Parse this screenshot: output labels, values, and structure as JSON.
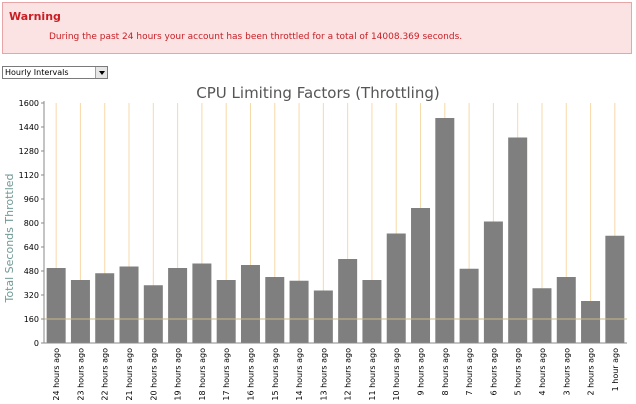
{
  "warning": {
    "title": "Warning",
    "message": "During the past 24 hours your account has been throttled for a total of 14008.369 seconds."
  },
  "interval_select": {
    "selected": "Hourly Intervals",
    "arrow_icon": "chevron-down-icon"
  },
  "chart_data": {
    "type": "bar",
    "title": "CPU Limiting Factors (Throttling)",
    "xlabel": "",
    "ylabel": "Total Seconds Throttled",
    "ylim": [
      0,
      1600
    ],
    "yticks": [
      0,
      160,
      320,
      480,
      640,
      800,
      960,
      1120,
      1280,
      1440,
      1600
    ],
    "reference_line": 160,
    "grid": "vertical",
    "colors": {
      "bar": "#7f7f7f",
      "grid": "#f7d9a8",
      "reference": "#c9b98a",
      "axis": "#8a8a8a"
    },
    "categories": [
      "24 hours ago",
      "23 hours ago",
      "22 hours ago",
      "21 hours ago",
      "20 hours ago",
      "19 hours ago",
      "18 hours ago",
      "17 hours ago",
      "16 hours ago",
      "15 hours ago",
      "14 hours ago",
      "13 hours ago",
      "12 hours ago",
      "11 hours ago",
      "10 hours ago",
      "9 hours ago",
      "8 hours ago",
      "7 hours ago",
      "6 hours ago",
      "5 hours ago",
      "4 hours ago",
      "3 hours ago",
      "2 hours ago",
      "1 hour ago"
    ],
    "values": [
      500,
      420,
      465,
      510,
      385,
      500,
      530,
      420,
      520,
      440,
      415,
      350,
      560,
      420,
      730,
      900,
      1500,
      495,
      810,
      1370,
      365,
      440,
      280,
      715
    ]
  }
}
